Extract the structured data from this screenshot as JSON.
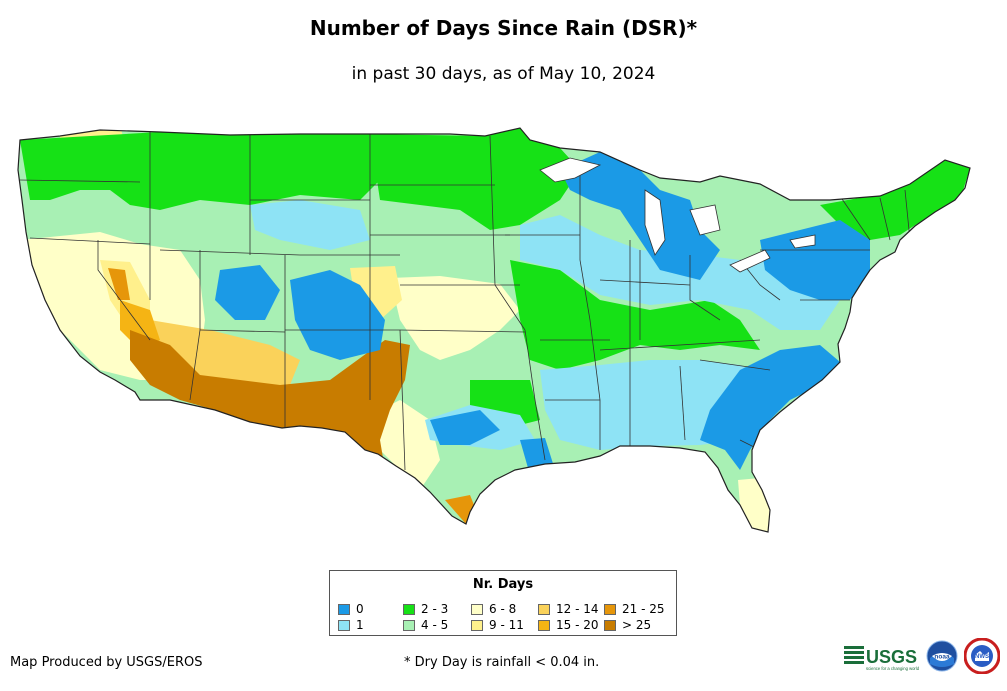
{
  "title": "Number of Days Since Rain (DSR)*",
  "subtitle": "in past 30 days, as of May 10, 2024",
  "legend": {
    "title": "Nr. Days",
    "items": [
      {
        "label": "0",
        "color": "#1b9ae6"
      },
      {
        "label": "1",
        "color": "#8ee3f5"
      },
      {
        "label": "2 - 3",
        "color": "#16e116"
      },
      {
        "label": "4 - 5",
        "color": "#a8f0b4"
      },
      {
        "label": "6 - 8",
        "color": "#ffffc8"
      },
      {
        "label": "9 - 11",
        "color": "#fff08c"
      },
      {
        "label": "12 - 14",
        "color": "#fad25a"
      },
      {
        "label": "15 - 20",
        "color": "#f5b414"
      },
      {
        "label": "21 - 25",
        "color": "#e6960a"
      },
      {
        "label": "> 25",
        "color": "#c87c00"
      }
    ]
  },
  "credit": "Map Produced by USGS/EROS",
  "footnote": "* Dry Day is rainfall < 0.04 in.",
  "logos": {
    "usgs": "USGS",
    "usgs_tagline": "science for a changing world",
    "noaa": "noaa",
    "nws": "NWS"
  }
}
